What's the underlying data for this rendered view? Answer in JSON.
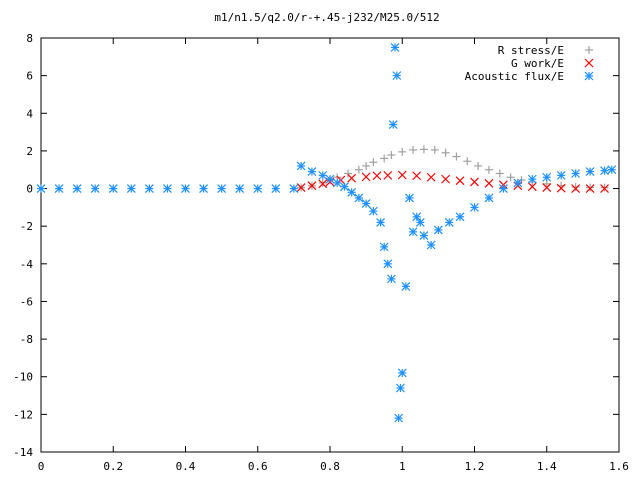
{
  "chart_data": {
    "type": "scatter",
    "title": "m1/n1.5/q2.0/r-+.45-j232/M25.0/512",
    "xlabel": "",
    "ylabel": "",
    "xlim": [
      0,
      1.6
    ],
    "ylim": [
      -14,
      8
    ],
    "x_ticks": [
      0,
      0.2,
      0.4,
      0.6,
      0.8,
      1,
      1.2,
      1.4,
      1.6
    ],
    "x_tick_labels": [
      "0",
      "0.2",
      "0.4",
      "0.6",
      "0.8",
      "1",
      "1.2",
      "1.4",
      "1.6"
    ],
    "y_ticks": [
      8,
      6,
      4,
      2,
      0,
      -2,
      -4,
      -6,
      -8,
      -10,
      -12,
      -14
    ],
    "y_tick_labels": [
      "8",
      "6",
      "4",
      "2",
      "0",
      "-2",
      "-4",
      "-6",
      "-8",
      "-10",
      "-12",
      "-14"
    ],
    "grid": false,
    "legend_position": "top-right",
    "series": [
      {
        "name": "R stress/E",
        "marker": "plus",
        "color": "#a0a0a0",
        "x": [
          0.72,
          0.75,
          0.78,
          0.8,
          0.82,
          0.85,
          0.88,
          0.9,
          0.92,
          0.95,
          0.97,
          1.0,
          1.03,
          1.06,
          1.09,
          1.12,
          1.15,
          1.18,
          1.21,
          1.24,
          1.27,
          1.3,
          1.33,
          1.36,
          1.4,
          1.44,
          1.48,
          1.52,
          1.56
        ],
        "y": [
          0.05,
          0.15,
          0.3,
          0.45,
          0.6,
          0.8,
          1.0,
          1.2,
          1.4,
          1.6,
          1.78,
          1.95,
          2.05,
          2.08,
          2.05,
          1.9,
          1.7,
          1.45,
          1.2,
          1.0,
          0.8,
          0.6,
          0.45,
          0.35,
          0.25,
          0.15,
          0.08,
          0.05,
          0.05
        ]
      },
      {
        "name": "G work/E",
        "marker": "cross",
        "color": "#ff0000",
        "x": [
          0.72,
          0.75,
          0.78,
          0.8,
          0.83,
          0.86,
          0.9,
          0.93,
          0.96,
          1.0,
          1.04,
          1.08,
          1.12,
          1.16,
          1.2,
          1.24,
          1.28,
          1.32,
          1.36,
          1.4,
          1.44,
          1.48,
          1.52,
          1.56
        ],
        "y": [
          0.05,
          0.15,
          0.25,
          0.35,
          0.45,
          0.55,
          0.62,
          0.68,
          0.7,
          0.72,
          0.68,
          0.6,
          0.5,
          0.42,
          0.35,
          0.28,
          0.2,
          0.15,
          0.1,
          0.05,
          0.02,
          0.0,
          0.0,
          0.0
        ]
      },
      {
        "name": "Acoustic flux/E",
        "marker": "star",
        "color": "#1e90ff",
        "x": [
          0.0,
          0.05,
          0.1,
          0.15,
          0.2,
          0.25,
          0.3,
          0.35,
          0.4,
          0.45,
          0.5,
          0.55,
          0.6,
          0.65,
          0.7,
          0.72,
          0.75,
          0.78,
          0.8,
          0.82,
          0.84,
          0.86,
          0.88,
          0.9,
          0.92,
          0.94,
          0.95,
          0.96,
          0.97,
          0.975,
          0.98,
          0.985,
          0.99,
          0.995,
          1.0,
          1.01,
          1.02,
          1.03,
          1.04,
          1.05,
          1.06,
          1.08,
          1.1,
          1.13,
          1.16,
          1.2,
          1.24,
          1.28,
          1.32,
          1.36,
          1.4,
          1.44,
          1.48,
          1.52,
          1.56,
          1.58
        ],
        "y": [
          0,
          0,
          0,
          0,
          0,
          0,
          0,
          0,
          0,
          0,
          0,
          0,
          0,
          0,
          0,
          1.2,
          0.9,
          0.7,
          0.5,
          0.3,
          0.1,
          -0.2,
          -0.5,
          -0.8,
          -1.2,
          -1.8,
          -3.1,
          -4.0,
          -4.8,
          3.4,
          7.5,
          6.0,
          -12.2,
          -10.6,
          -9.8,
          -5.2,
          -0.5,
          -2.3,
          -1.5,
          -1.8,
          -2.5,
          -3.0,
          -2.2,
          -1.8,
          -1.5,
          -1.0,
          -0.5,
          0.0,
          0.3,
          0.5,
          0.6,
          0.7,
          0.8,
          0.9,
          0.95,
          1.0
        ]
      }
    ]
  }
}
